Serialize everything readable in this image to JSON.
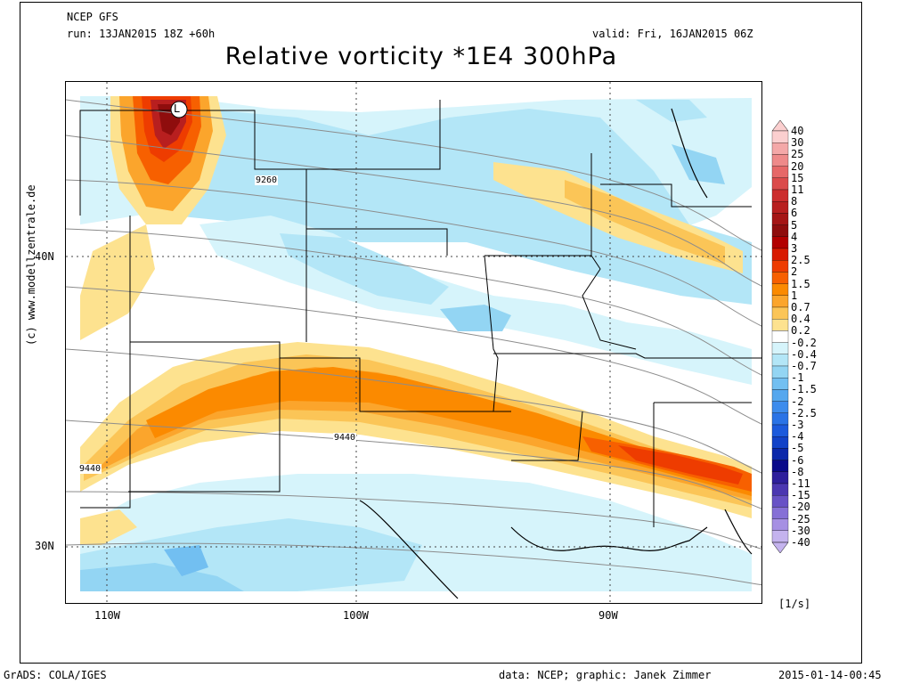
{
  "header": {
    "model": "NCEP GFS",
    "run": "run: 13JAN2015 18Z +60h",
    "valid": "valid: Fri, 16JAN2015 06Z",
    "title": "Relative vorticity *1E4 300hPa"
  },
  "map": {
    "lat_labels": [
      "40N",
      "30N"
    ],
    "lon_labels": [
      "110W",
      "100W",
      "90W"
    ],
    "contour_labels": [
      "9260",
      "9440",
      "9440"
    ],
    "low_marker": "L",
    "credit": "(c) www.modellzentrale.de"
  },
  "colorbar": {
    "labels": [
      "40",
      "30",
      "25",
      "20",
      "15",
      "11",
      "8",
      "6",
      "5",
      "4",
      "3",
      "2.5",
      "2",
      "1.5",
      "1",
      "0.7",
      "0.4",
      "0.2",
      "-0.2",
      "-0.4",
      "-0.7",
      "-1",
      "-1.5",
      "-2",
      "-2.5",
      "-3",
      "-4",
      "-5",
      "-6",
      "-8",
      "-11",
      "-15",
      "-20",
      "-25",
      "-30",
      "-40"
    ],
    "colors": [
      "#fbcfcf",
      "#f4a8a8",
      "#ee8a8a",
      "#e66868",
      "#db4a4a",
      "#cc2d2d",
      "#b81f1f",
      "#a51515",
      "#8f0d0d",
      "#b20000",
      "#d81a00",
      "#ee3c00",
      "#f76000",
      "#fb8a00",
      "#fba52c",
      "#fbc557",
      "#fde28f",
      "#ffffff",
      "#d6f4fb",
      "#b3e6f7",
      "#93d5f3",
      "#72bff1",
      "#55a7ee",
      "#3d8ced",
      "#2a73e6",
      "#1c5adc",
      "#1242c8",
      "#0b28aa",
      "#0a0a8a",
      "#2e1f9c",
      "#4b37b1",
      "#6852c6",
      "#8670d6",
      "#a690e3",
      "#c4b3ee"
    ],
    "unit": "[1/s]"
  },
  "footer": {
    "left": "GrADS: COLA/IGES",
    "middle": "data: NCEP; graphic: Janek Zimmer",
    "right": "2015-01-14-00:45"
  }
}
